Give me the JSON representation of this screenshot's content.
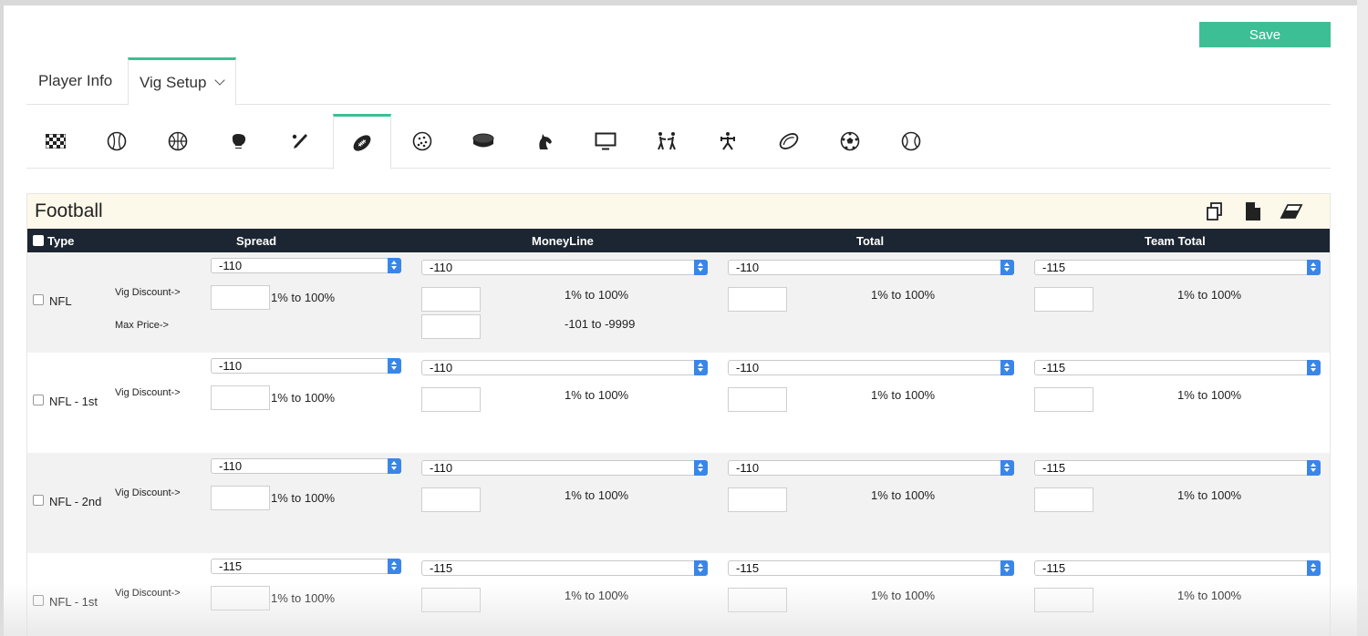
{
  "toolbar": {
    "save_label": "Save"
  },
  "tabs": [
    {
      "label": "Player Info"
    },
    {
      "label": "Vig Setup"
    }
  ],
  "sport_tabs": [
    {
      "icon": "checkered-flag-icon"
    },
    {
      "icon": "baseball-icon"
    },
    {
      "icon": "basketball-icon"
    },
    {
      "icon": "boxing-glove-icon"
    },
    {
      "icon": "cricket-bat-icon"
    },
    {
      "icon": "football-icon",
      "active": true
    },
    {
      "icon": "golf-ball-icon"
    },
    {
      "icon": "hockey-puck-icon"
    },
    {
      "icon": "horse-icon"
    },
    {
      "icon": "tv-icon"
    },
    {
      "icon": "fighters-icon"
    },
    {
      "icon": "rugby-icon"
    },
    {
      "icon": "rugby-ball-icon"
    },
    {
      "icon": "soccer-ball-icon"
    },
    {
      "icon": "tennis-ball-icon"
    }
  ],
  "section": {
    "title": "Football",
    "tools": [
      "copy-icon",
      "document-icon",
      "eraser-icon"
    ]
  },
  "columns": {
    "type": "Type",
    "spread": "Spread",
    "moneyline": "MoneyLine",
    "total": "Total",
    "team_total": "Team Total"
  },
  "labels": {
    "vig_discount": "Vig Discount->",
    "max_price": "Max Price->",
    "range_pct": "1% to 100%",
    "range_price": "-101 to -9999"
  },
  "rows": [
    {
      "name": "NFL",
      "spread": "-110",
      "moneyline": "-110",
      "total": "-110",
      "team_total": "-115",
      "show_max_price": true
    },
    {
      "name": "NFL - 1st",
      "spread": "-110",
      "moneyline": "-110",
      "total": "-110",
      "team_total": "-115"
    },
    {
      "name": "NFL - 2nd",
      "spread": "-110",
      "moneyline": "-110",
      "total": "-110",
      "team_total": "-115"
    },
    {
      "name": "NFL - 1st",
      "spread": "-115",
      "moneyline": "-115",
      "total": "-115",
      "team_total": "-115"
    }
  ],
  "colors": {
    "accent": "#3cbf94",
    "header_bg": "#1c2632",
    "section_bg": "#fdf9ea",
    "select_arrow": "#3a86e8"
  }
}
